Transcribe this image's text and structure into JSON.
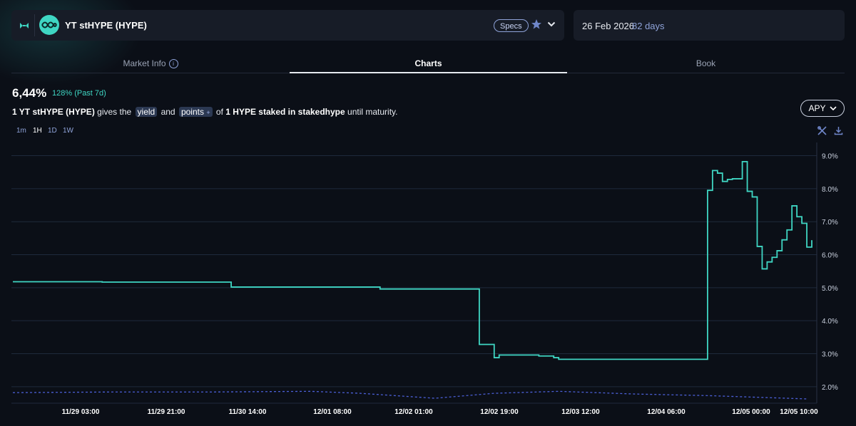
{
  "header": {
    "market_title": "YT stHYPE (HYPE)",
    "specs_label": "Specs",
    "expiry_date": "26 Feb 2026",
    "days_left": "82 days",
    "icons": [
      "app-logo-icon",
      "token-icon",
      "star-icon",
      "chevron-down-icon"
    ]
  },
  "tabs": {
    "market_info": "Market Info",
    "charts": "Charts",
    "book": "Book",
    "active": "Charts"
  },
  "summary": {
    "value": "6,44%",
    "change": "128% (Past 7d)",
    "desc_amount": "1 YT stHYPE (HYPE)",
    "desc_gives": "gives the",
    "yield_label": "yield",
    "and_label": "and",
    "points_label": "points",
    "points_plus": "+",
    "desc_of": "of",
    "desc_stake": "1 HYPE staked in stakedhype",
    "desc_until": "until maturity."
  },
  "controls": {
    "apy_label": "APY",
    "timeframes": [
      "1m",
      "1H",
      "1D",
      "1W"
    ],
    "active_timeframe": "1H",
    "tool_icons": [
      "crosshair-tools-icon",
      "download-icon"
    ]
  },
  "colors": {
    "accent": "#3fd6c3",
    "secondary": "#4b5fd6",
    "background": "#0b0f17",
    "card": "#171c27"
  },
  "chart_data": {
    "type": "line",
    "x_ticks": [
      "11/29 03:00",
      "11/29 21:00",
      "11/30 14:00",
      "12/01 08:00",
      "12/02 01:00",
      "12/02 19:00",
      "12/03 12:00",
      "12/04 06:00",
      "12/05 00:00",
      "12/05 10:00"
    ],
    "y_ticks": [
      "2.0%",
      "3.0%",
      "4.0%",
      "5.0%",
      "6.0%",
      "7.0%",
      "8.0%",
      "9.0%"
    ],
    "ylim": [
      1.5,
      9.4
    ],
    "xlim": [
      0,
      158
    ],
    "grid": "horizontal",
    "y_axis_position": "right",
    "series": [
      {
        "style": "step",
        "color": "#3fd6c3",
        "points": [
          [
            0,
            5.18
          ],
          [
            18,
            5.17
          ],
          [
            44,
            5.02
          ],
          [
            74,
            4.96
          ],
          [
            79,
            4.96
          ],
          [
            94,
            3.28
          ],
          [
            97,
            2.88
          ],
          [
            98,
            2.96
          ],
          [
            105,
            2.96
          ],
          [
            106,
            2.93
          ],
          [
            109,
            2.88
          ],
          [
            110,
            2.83
          ],
          [
            116,
            2.83
          ],
          [
            139,
            2.83
          ],
          [
            140,
            7.95
          ],
          [
            141,
            8.55
          ],
          [
            142,
            8.47
          ],
          [
            143,
            8.22
          ],
          [
            144,
            8.28
          ],
          [
            145,
            8.3
          ],
          [
            146,
            8.3
          ],
          [
            147,
            8.82
          ],
          [
            148,
            7.92
          ],
          [
            149,
            7.75
          ],
          [
            150,
            6.25
          ],
          [
            151,
            5.57
          ],
          [
            152,
            5.78
          ],
          [
            153,
            5.92
          ],
          [
            154,
            6.12
          ],
          [
            155,
            6.45
          ],
          [
            156,
            6.75
          ],
          [
            157,
            7.48
          ],
          [
            158,
            7.15
          ],
          [
            159,
            6.95
          ],
          [
            160,
            6.23
          ],
          [
            161,
            6.44
          ]
        ]
      },
      {
        "style": "dashed",
        "color": "#4b5fd6",
        "points": [
          [
            0,
            1.82
          ],
          [
            20,
            1.84
          ],
          [
            40,
            1.84
          ],
          [
            60,
            1.86
          ],
          [
            70,
            1.8
          ],
          [
            85,
            1.65
          ],
          [
            97,
            1.8
          ],
          [
            110,
            1.86
          ],
          [
            125,
            1.78
          ],
          [
            140,
            1.73
          ],
          [
            160,
            1.63
          ]
        ]
      }
    ]
  }
}
